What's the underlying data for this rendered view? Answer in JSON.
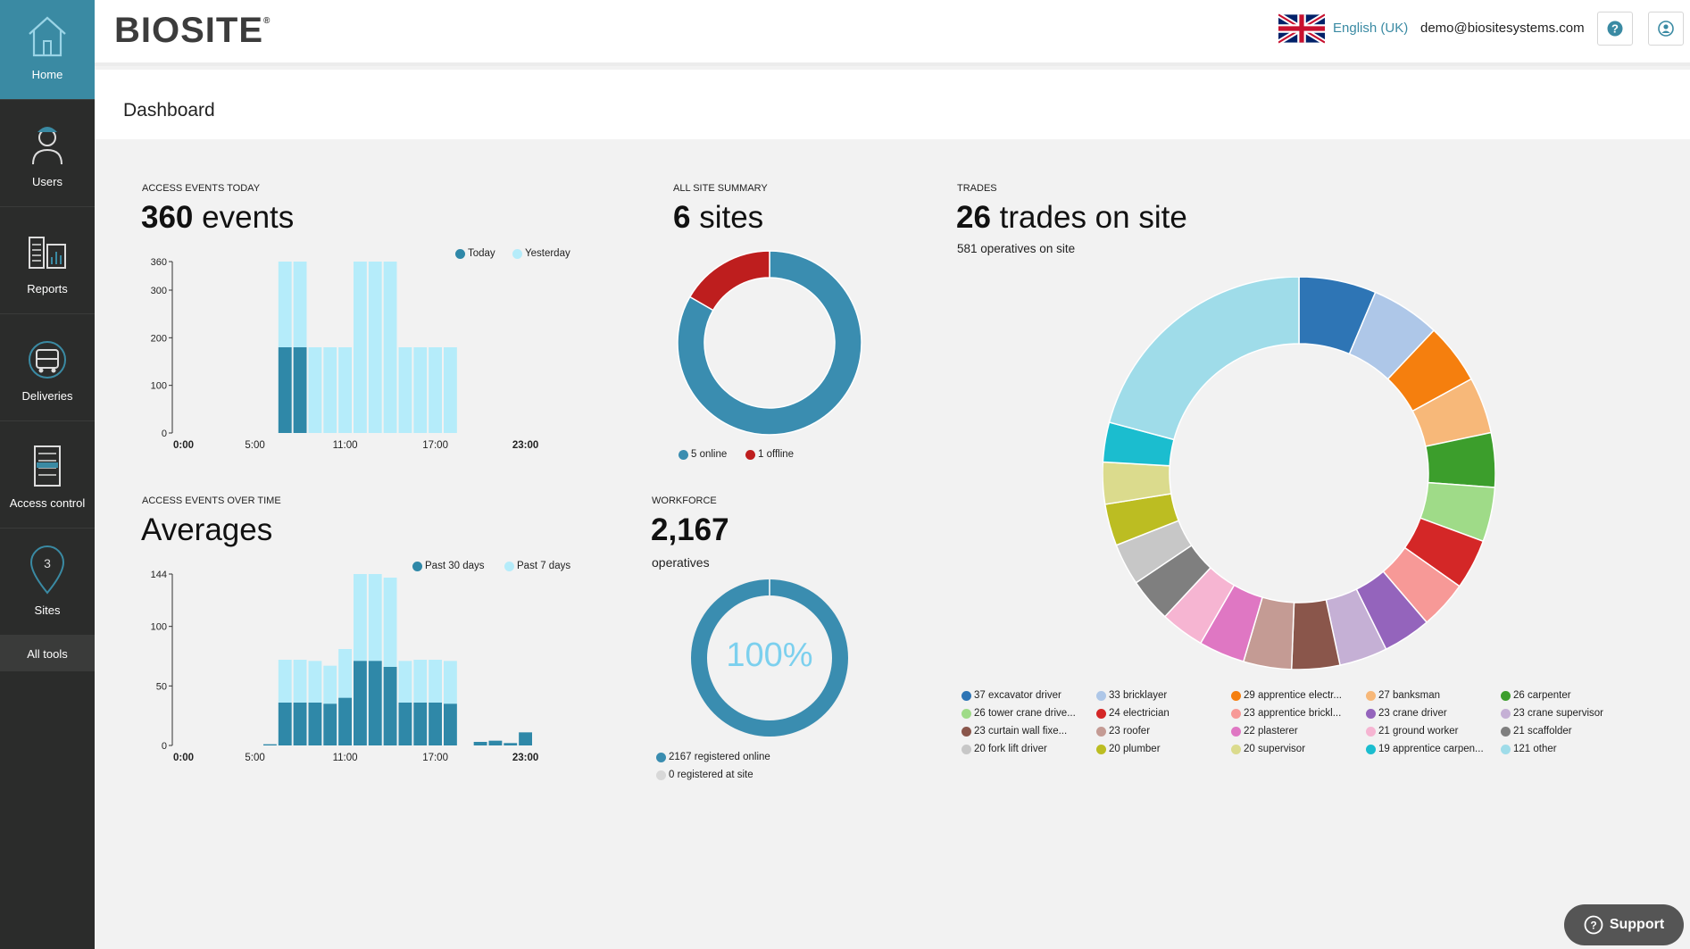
{
  "sidebar": {
    "items": [
      {
        "label": "Home",
        "icon": "home-icon"
      },
      {
        "label": "Users",
        "icon": "worker-icon"
      },
      {
        "label": "Reports",
        "icon": "reports-icon"
      },
      {
        "label": "Deliveries",
        "icon": "truck-icon"
      },
      {
        "label": "Access control",
        "icon": "turnstile-icon"
      },
      {
        "label": "Sites",
        "icon": "map-pin-icon"
      }
    ],
    "all_tools": "All tools"
  },
  "header": {
    "logo": "BIOSITE",
    "logo_mark": "®",
    "language": "English (UK)",
    "email": "demo@biositesystems.com"
  },
  "page": {
    "title": "Dashboard"
  },
  "colors": {
    "accent": "#3a8aa3",
    "today": "#2f88a8",
    "yesterday": "#b5ecfa",
    "offline": "#c41e1e",
    "percent_text": "#7cd0ee"
  },
  "access_today": {
    "label": "ACCESS EVENTS TODAY",
    "count": "360",
    "unit": "events",
    "legend": [
      "Today",
      "Yesterday"
    ]
  },
  "averages": {
    "label": "ACCESS EVENTS OVER TIME",
    "title": "Averages",
    "legend": [
      "Past 30 days",
      "Past 7 days"
    ]
  },
  "site_summary": {
    "label": "ALL SITE SUMMARY",
    "count": "6",
    "unit": "sites",
    "legend": [
      "5 online",
      "1 offline"
    ]
  },
  "workforce": {
    "label": "WORKFORCE",
    "count": "2,167",
    "unit": "operatives",
    "percent": "100%",
    "legend": [
      "2167 registered online",
      "0 registered at site"
    ]
  },
  "trades": {
    "label": "TRADES",
    "count": "26",
    "unit": "trades on site",
    "operatives": "581 operatives on site"
  },
  "chart_data": [
    {
      "type": "bar",
      "title": "Access events today",
      "categories": [
        "0:00",
        "1:00",
        "2:00",
        "3:00",
        "4:00",
        "5:00",
        "6:00",
        "7:00",
        "8:00",
        "9:00",
        "10:00",
        "11:00",
        "12:00",
        "13:00",
        "14:00",
        "15:00",
        "16:00",
        "17:00",
        "18:00",
        "19:00",
        "20:00",
        "21:00",
        "22:00",
        "23:00"
      ],
      "tick_labels": [
        "0:00",
        "5:00",
        "11:00",
        "17:00",
        "23:00"
      ],
      "y_ticks": [
        "0",
        "100",
        "200",
        "300",
        "360"
      ],
      "ylim": [
        0,
        360
      ],
      "series": [
        {
          "name": "Today",
          "values": [
            0,
            0,
            0,
            0,
            0,
            0,
            0,
            180,
            180,
            0,
            0,
            0,
            0,
            0,
            0,
            0,
            0,
            0,
            0,
            0,
            0,
            0,
            0,
            0
          ]
        },
        {
          "name": "Yesterday",
          "values": [
            0,
            0,
            0,
            0,
            0,
            0,
            0,
            360,
            360,
            180,
            180,
            180,
            360,
            360,
            360,
            180,
            180,
            180,
            180,
            0,
            0,
            0,
            0,
            0
          ]
        }
      ]
    },
    {
      "type": "bar",
      "title": "Averages",
      "categories": [
        "0:00",
        "1:00",
        "2:00",
        "3:00",
        "4:00",
        "5:00",
        "6:00",
        "7:00",
        "8:00",
        "9:00",
        "10:00",
        "11:00",
        "12:00",
        "13:00",
        "14:00",
        "15:00",
        "16:00",
        "17:00",
        "18:00",
        "19:00",
        "20:00",
        "21:00",
        "22:00",
        "23:00"
      ],
      "tick_labels": [
        "0:00",
        "5:00",
        "11:00",
        "17:00",
        "23:00"
      ],
      "y_ticks": [
        "0",
        "50",
        "100",
        "144"
      ],
      "ylim": [
        0,
        144
      ],
      "series": [
        {
          "name": "Past 30 days",
          "values": [
            0,
            0,
            0,
            0,
            0,
            0,
            1,
            36,
            36,
            36,
            35,
            40,
            71,
            71,
            66,
            36,
            36,
            36,
            35,
            0,
            3,
            4,
            2,
            11
          ]
        },
        {
          "name": "Past 7 days",
          "values": [
            0,
            0,
            0,
            0,
            0,
            0,
            0,
            72,
            72,
            71,
            67,
            81,
            144,
            144,
            141,
            71,
            72,
            72,
            71,
            0,
            0,
            0,
            0,
            0
          ]
        }
      ]
    },
    {
      "type": "pie",
      "title": "All site summary",
      "labels": [
        "online",
        "offline"
      ],
      "values": [
        5,
        1
      ],
      "colors": [
        "#3a8db0",
        "#be1e1e"
      ]
    },
    {
      "type": "pie",
      "title": "Workforce",
      "labels": [
        "registered online",
        "registered at site"
      ],
      "values": [
        2167,
        0
      ],
      "colors": [
        "#3a8db0",
        "#d8d8d8"
      ]
    },
    {
      "type": "pie",
      "title": "Trades",
      "labels": [
        "37 excavator driver",
        "33 bricklayer",
        "29 apprentice electr...",
        "27 banksman",
        "26 carpenter",
        "26 tower crane drive...",
        "24 electrician",
        "23 apprentice brickl...",
        "23 crane driver",
        "23 crane supervisor",
        "23 curtain wall fixe...",
        "23 roofer",
        "22 plasterer",
        "21 ground worker",
        "21 scaffolder",
        "20 fork lift driver",
        "20 plumber",
        "20 supervisor",
        "19 apprentice carpen...",
        "121 other"
      ],
      "values": [
        37,
        33,
        29,
        27,
        26,
        26,
        24,
        23,
        23,
        23,
        23,
        23,
        22,
        21,
        21,
        20,
        20,
        20,
        19,
        121
      ],
      "colors": [
        "#2e75b5",
        "#aec7e8",
        "#f57f0e",
        "#f7b879",
        "#3c9e2c",
        "#9fdb88",
        "#d42727",
        "#f79997",
        "#9464bc",
        "#c5b0d5",
        "#8a564b",
        "#c49b94",
        "#df77c3",
        "#f6b5d2",
        "#7f7f7f",
        "#c7c7c7",
        "#bcbd22",
        "#dbdb8d",
        "#1bbdcf",
        "#9fdce9"
      ]
    }
  ]
}
